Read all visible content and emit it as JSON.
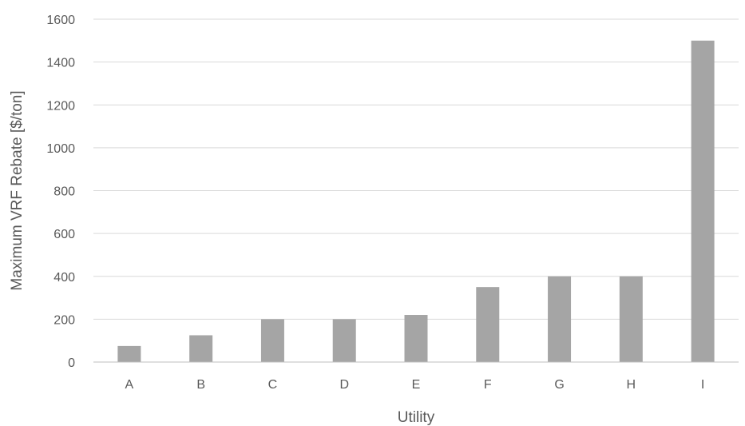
{
  "chart_data": {
    "type": "bar",
    "categories": [
      "A",
      "B",
      "C",
      "D",
      "E",
      "F",
      "G",
      "H",
      "I"
    ],
    "values": [
      75,
      125,
      200,
      200,
      220,
      350,
      400,
      400,
      1500
    ],
    "xlabel": "Utility",
    "ylabel": "Maximum VRF Rebate [$/ton]",
    "ylim": [
      0,
      1600
    ],
    "yticks": [
      0,
      200,
      400,
      600,
      800,
      1000,
      1200,
      1400,
      1600
    ],
    "grid": true,
    "bar_color": "#a5a5a5"
  }
}
